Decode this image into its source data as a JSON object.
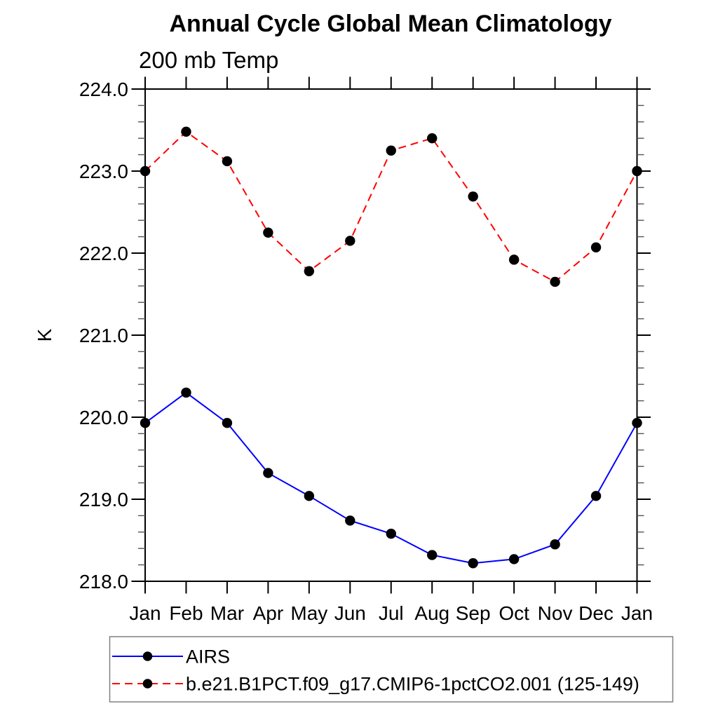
{
  "chart_data": {
    "type": "line",
    "title": "Annual Cycle Global Mean Climatology",
    "subtitle": "200 mb Temp",
    "ylabel": "K",
    "xlabel": "",
    "x_tick_labels": [
      "Jan",
      "Feb",
      "Mar",
      "Apr",
      "May",
      "Jun",
      "Jul",
      "Aug",
      "Sep",
      "Oct",
      "Nov",
      "Dec",
      "Jan"
    ],
    "ylim": [
      218.0,
      224.0
    ],
    "y_major_ticks": [
      218.0,
      219.0,
      220.0,
      221.0,
      222.0,
      223.0,
      224.0
    ],
    "y_major_tick_labels": [
      "218.0",
      "219.0",
      "220.0",
      "221.0",
      "222.0",
      "223.0",
      "224.0"
    ],
    "y_minor_tick_step": 0.2,
    "grid": false,
    "legend_position": "bottom-outside-left",
    "axis_color": "#000000",
    "minor_tick_color": "#555555",
    "legend_border_color": "#808080",
    "series": [
      {
        "name": "AIRS",
        "line_color": "#0000ff",
        "line_style": "solid",
        "marker": "filled-circle",
        "marker_color": "#000000",
        "values": [
          219.93,
          220.3,
          219.93,
          219.32,
          219.04,
          218.74,
          218.58,
          218.32,
          218.22,
          218.27,
          218.45,
          219.04,
          219.93
        ]
      },
      {
        "name": "b.e21.B1PCT.f09_g17.CMIP6-1pctCO2.001 (125-149)",
        "line_color": "#ff0000",
        "line_style": "dashed",
        "marker": "filled-circle",
        "marker_color": "#000000",
        "values": [
          223.0,
          223.48,
          223.12,
          222.25,
          221.78,
          222.15,
          223.25,
          223.4,
          222.69,
          221.92,
          221.65,
          222.07,
          223.0
        ]
      }
    ]
  }
}
